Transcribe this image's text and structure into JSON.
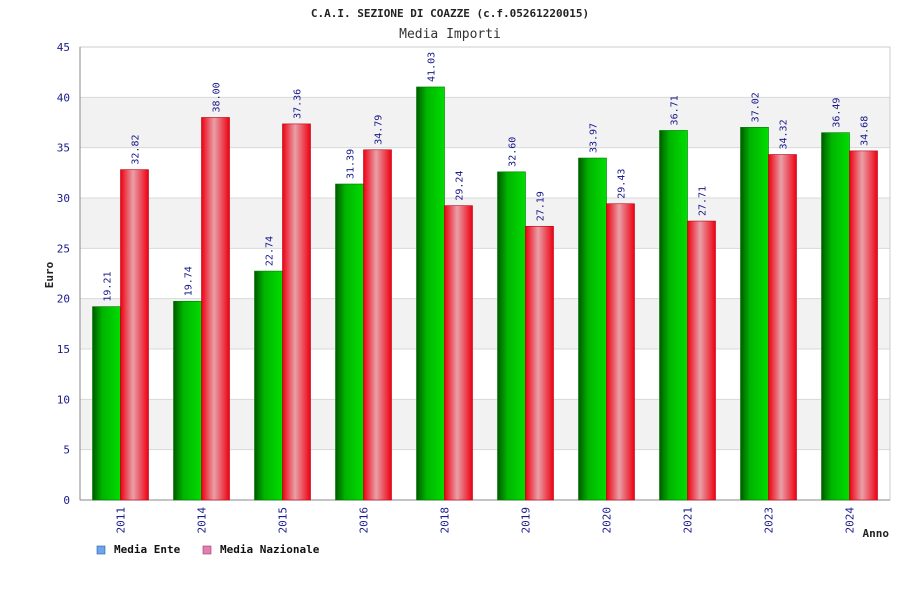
{
  "chart_data": {
    "type": "bar",
    "title": "C.A.I. SEZIONE DI COAZZE (c.f.05261220015)",
    "subtitle": "Media Importi",
    "xlabel": "Anno",
    "ylabel": "Euro",
    "ylim": [
      0,
      45
    ],
    "yticks": [
      0,
      5,
      10,
      15,
      20,
      25,
      30,
      35,
      40,
      45
    ],
    "grid": true,
    "legend_position": "bottom-left",
    "categories": [
      "2011",
      "2014",
      "2015",
      "2016",
      "2018",
      "2019",
      "2020",
      "2021",
      "2023",
      "2024"
    ],
    "series": [
      {
        "name": "Media Ente",
        "color": "#00b000",
        "legend_color": "#6aa6e8",
        "values": [
          19.21,
          19.74,
          22.74,
          31.39,
          41.03,
          32.6,
          33.97,
          36.71,
          37.02,
          36.49
        ],
        "labels": [
          "19.21",
          "19.74",
          "22.74",
          "31.39",
          "41.03",
          "32.60",
          "33.97",
          "36.71",
          "37.02",
          "36.49"
        ]
      },
      {
        "name": "Media Nazionale",
        "color": "#ee1122",
        "legend_color": "#e080b0",
        "values": [
          32.82,
          38.0,
          37.36,
          34.79,
          29.24,
          27.19,
          29.43,
          27.71,
          34.32,
          34.68
        ],
        "labels": [
          "32.82",
          "38.00",
          "37.36",
          "34.79",
          "29.24",
          "27.19",
          "29.43",
          "27.71",
          "34.32",
          "34.68"
        ]
      }
    ]
  }
}
